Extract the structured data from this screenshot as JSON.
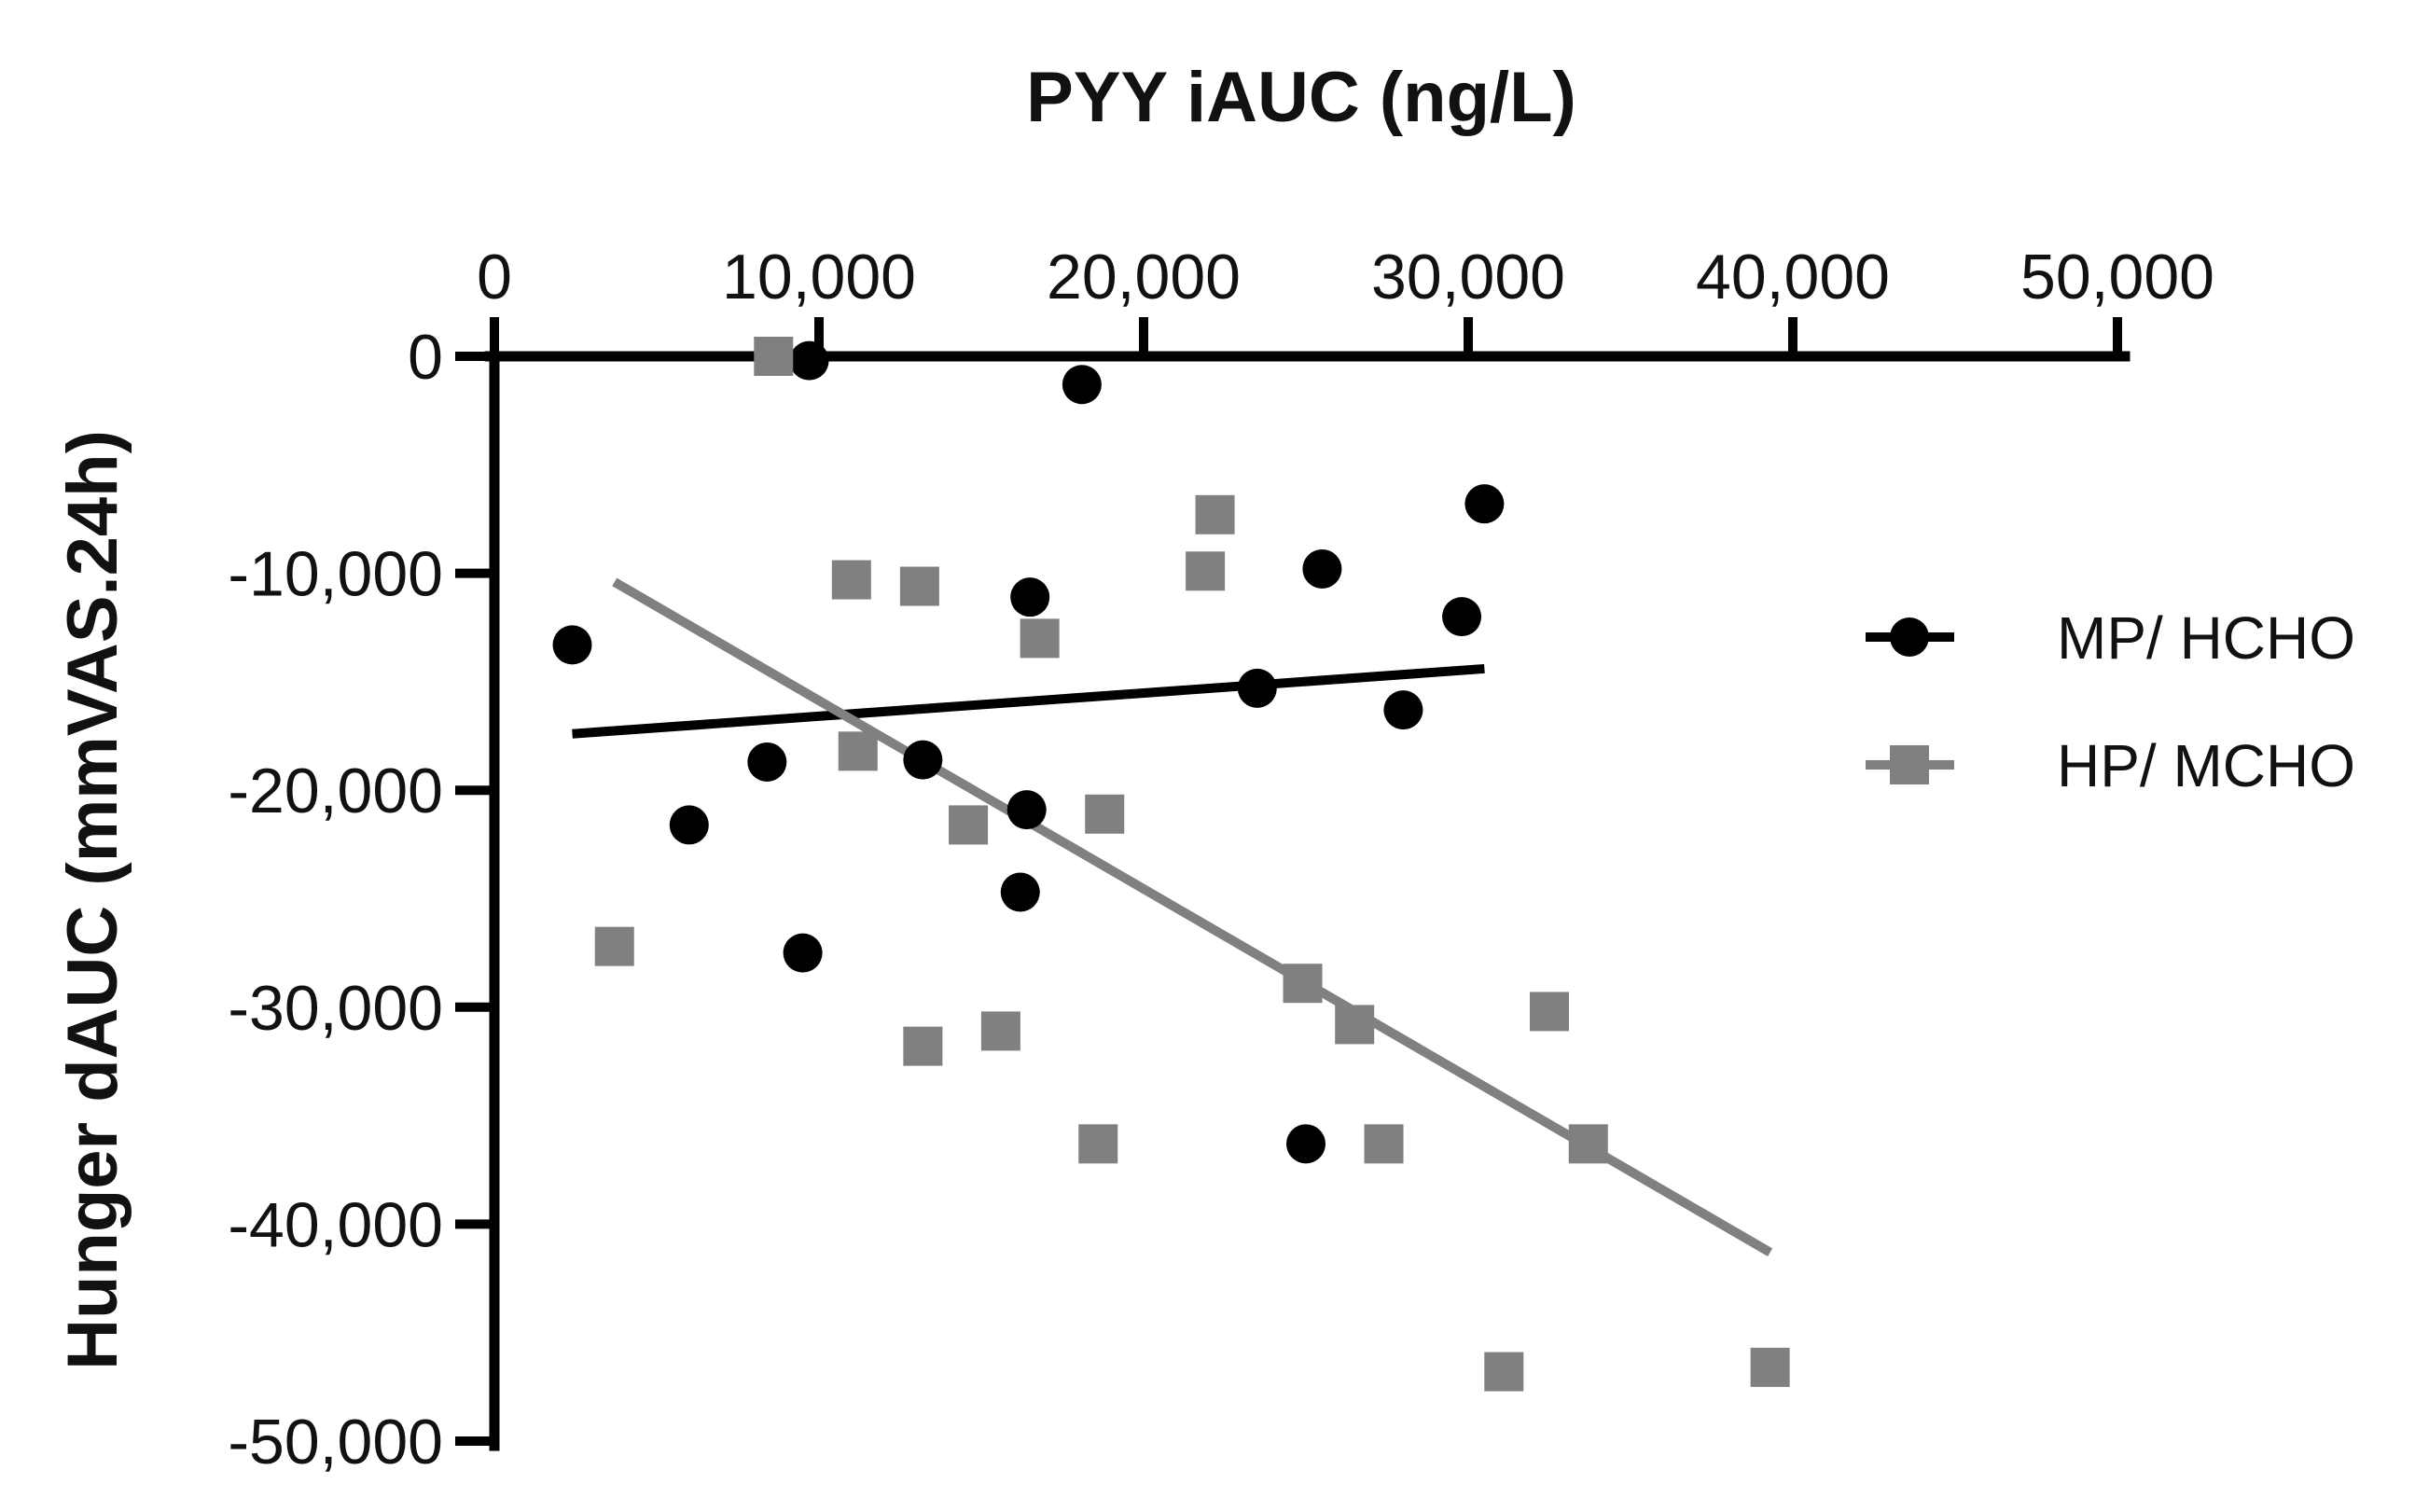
{
  "chart_data": {
    "type": "scatter",
    "title": "",
    "xlabel": "PYY iAUC (ng/L)",
    "ylabel": "Hunger dAUC (mmVAS.24h)",
    "xlim": [
      0,
      50000
    ],
    "ylim": [
      -50000,
      0
    ],
    "x_ticks": [
      "0",
      "10,000",
      "20,000",
      "30,000",
      "40,000",
      "50,000"
    ],
    "x_tick_values": [
      0,
      10000,
      20000,
      30000,
      40000,
      50000
    ],
    "y_ticks": [
      "0",
      "-10,000",
      "-20,000",
      "-30,000",
      "-40,000",
      "-50,000"
    ],
    "y_tick_values": [
      0,
      -10000,
      -20000,
      -30000,
      -40000,
      -50000
    ],
    "x_axis_position": "top",
    "legend_position": "right",
    "grid": false,
    "series": [
      {
        "name": "MP/ HCHO",
        "marker": "circle",
        "color": "#000000",
        "points": [
          [
            2400,
            -13300
          ],
          [
            6000,
            -21600
          ],
          [
            8400,
            -18700
          ],
          [
            9500,
            -27500
          ],
          [
            9700,
            -200
          ],
          [
            13200,
            -18600
          ],
          [
            16200,
            -24700
          ],
          [
            16400,
            -20900
          ],
          [
            16500,
            -11100
          ],
          [
            18100,
            -1300
          ],
          [
            23500,
            -15300
          ],
          [
            25000,
            -36300
          ],
          [
            25500,
            -9800
          ],
          [
            28000,
            -16300
          ],
          [
            29800,
            -12000
          ],
          [
            30500,
            -6800
          ]
        ],
        "fit": [
          [
            2400,
            -17400
          ],
          [
            30500,
            -14400
          ]
        ]
      },
      {
        "name": "HP/ MCHO",
        "marker": "square",
        "color": "#808080",
        "points": [
          [
            3700,
            -27200
          ],
          [
            8600,
            0
          ],
          [
            11000,
            -10300
          ],
          [
            11200,
            -18200
          ],
          [
            13100,
            -10600
          ],
          [
            13200,
            -31800
          ],
          [
            14600,
            -21600
          ],
          [
            15600,
            -31100
          ],
          [
            16800,
            -13000
          ],
          [
            18600,
            -36300
          ],
          [
            18800,
            -21100
          ],
          [
            21900,
            -9900
          ],
          [
            22200,
            -7300
          ],
          [
            24900,
            -28900
          ],
          [
            26500,
            -30800
          ],
          [
            27400,
            -36300
          ],
          [
            31100,
            -46800
          ],
          [
            32500,
            -30200
          ],
          [
            33700,
            -36300
          ],
          [
            39300,
            -46600
          ]
        ],
        "fit": [
          [
            3700,
            -10400
          ],
          [
            39300,
            -41300
          ]
        ]
      }
    ]
  }
}
